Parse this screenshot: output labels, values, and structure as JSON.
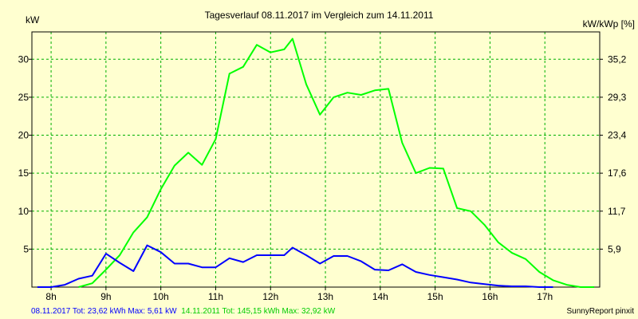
{
  "chart_data": {
    "type": "line",
    "title": "Tagesverlauf 08.11.2017 im Vergleich zum 14.11.2011",
    "ylabel_left": "kW",
    "ylabel_right": "kW/kWp [%]",
    "x_ticks": [
      "8h",
      "9h",
      "10h",
      "11h",
      "12h",
      "13h",
      "14h",
      "15h",
      "16h",
      "17h"
    ],
    "y_ticks": [
      5,
      10,
      15,
      20,
      25,
      30
    ],
    "y2_ticks": [
      "5,9",
      "11,7",
      "17,6",
      "23,4",
      "29,3",
      "35,2"
    ],
    "xlim": [
      7.65,
      18.0
    ],
    "ylim": [
      0,
      33.6
    ],
    "grid": true,
    "series": [
      {
        "name": "14.11.2011",
        "color": "#00ff00",
        "x": [
          8.5,
          8.75,
          9.0,
          9.25,
          9.5,
          9.75,
          10.0,
          10.25,
          10.5,
          10.75,
          11.0,
          11.25,
          11.5,
          11.75,
          12.0,
          12.25,
          12.4,
          12.65,
          12.9,
          13.15,
          13.4,
          13.65,
          13.9,
          14.15,
          14.4,
          14.65,
          14.9,
          15.15,
          15.4,
          15.65,
          15.9,
          16.15,
          16.4,
          16.65,
          16.9,
          17.15,
          17.4,
          17.65,
          17.9
        ],
        "y": [
          0,
          0.5,
          2.3,
          4.2,
          7.2,
          9.2,
          12.9,
          16.0,
          17.7,
          16.1,
          19.5,
          28.1,
          29.0,
          31.9,
          30.9,
          31.3,
          32.7,
          26.7,
          22.7,
          25.0,
          25.6,
          25.3,
          25.9,
          26.1,
          19.0,
          15.0,
          15.7,
          15.6,
          10.4,
          10.0,
          8.2,
          5.9,
          4.5,
          3.7,
          2.0,
          0.9,
          0.3,
          0.0,
          0.0
        ]
      },
      {
        "name": "08.11.2017",
        "color": "#0000ff",
        "x": [
          7.75,
          8.0,
          8.25,
          8.5,
          8.75,
          9.0,
          9.25,
          9.5,
          9.75,
          10.0,
          10.25,
          10.5,
          10.75,
          11.0,
          11.25,
          11.5,
          11.75,
          12.0,
          12.25,
          12.4,
          12.65,
          12.9,
          13.15,
          13.4,
          13.65,
          13.9,
          14.15,
          14.4,
          14.65,
          14.9,
          15.15,
          15.4,
          15.65,
          15.9,
          16.15,
          16.4,
          16.65,
          16.9,
          17.15
        ],
        "y": [
          0,
          0,
          0.3,
          1.1,
          1.5,
          4.4,
          3.2,
          2.1,
          5.5,
          4.6,
          3.1,
          3.1,
          2.6,
          2.6,
          3.8,
          3.3,
          4.2,
          4.2,
          4.2,
          5.2,
          4.2,
          3.1,
          4.1,
          4.1,
          3.4,
          2.3,
          2.2,
          3.0,
          2.0,
          1.6,
          1.3,
          1.0,
          0.6,
          0.4,
          0.2,
          0.1,
          0.1,
          0.0,
          0.0
        ]
      }
    ],
    "footer": [
      {
        "text": "08.11.2017 Tot: 23,62 kWh Max: 5,61 kW",
        "color": "#0000ff"
      },
      {
        "text": "14.11.2011 Tot: 145,15 kWh Max: 32,92 kW",
        "color": "#00cc00"
      }
    ],
    "credit": "SunnyReport pinxit"
  }
}
